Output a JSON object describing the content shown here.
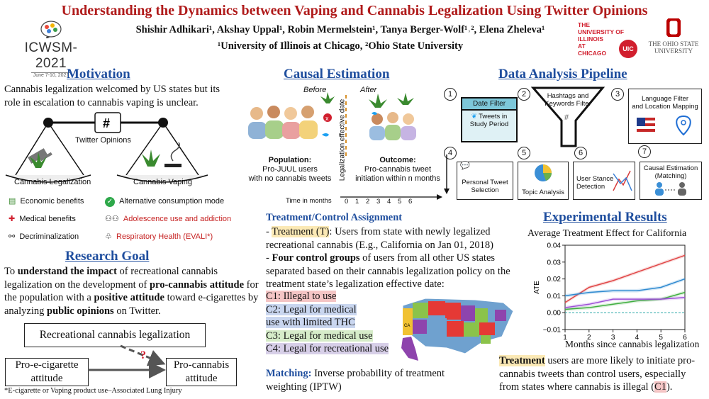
{
  "header": {
    "title": "Understanding the Dynamics between Vaping and Cannabis Legalization Using Twitter Opinions",
    "authors": "Shishir Adhikari¹, Akshay Uppal¹, Robin Mermelstein¹, Tanya Berger-Wolf¹˒², Elena Zheleva¹",
    "affiliations": "¹University of Illinois at Chicago, ²Ohio State University",
    "conf_logo": "ICWSM-2021",
    "conf_dates": "June 7-10, 2021",
    "uic_lines": [
      "THE",
      "UNIVERSITY OF",
      "ILLINOIS",
      "AT",
      "CHICAGO"
    ],
    "uic_badge": "UIC",
    "osu_lines": [
      "THE OHIO STATE",
      "UNIVERSITY"
    ]
  },
  "motivation": {
    "heading": "Motivation",
    "text": "Cannabis legalization welcomed by US states but its role in escalation to cannabis vaping is unclear.",
    "scale_center": "Twitter Opinions",
    "left_pan": "Cannabis Legalization",
    "right_pan": "Cannabis Vaping",
    "left_items": [
      "Economic benefits",
      "Medical benefits",
      "Decriminalization"
    ],
    "right_items": [
      "Alternative consumption mode",
      "Adolescence use and addiction",
      "Respiratory Health (EVALI*)"
    ]
  },
  "research_goal": {
    "heading": "Research Goal",
    "p1": "To ",
    "b1": "understand the impact",
    "p2": " of recreational cannabis legalization on the development of ",
    "b2": "pro-cannabis attitude",
    "p3": " for the population with a ",
    "b3": "positive attitude",
    "p4": " toward e-cigarettes by analyzing ",
    "b4": "public opinions",
    "p5": " on Twitter.",
    "dag_top": "Recreational cannabis legalization",
    "dag_left": "Pro-e-cigarette attitude",
    "dag_right": "Pro-cannabis attitude",
    "dag_question": "?",
    "footnote": "*E-cigarette or Vaping product use–Associated Lung Injury"
  },
  "causal": {
    "heading": "Causal Estimation",
    "before": "Before",
    "after": "After",
    "divider": "Legalization effective date",
    "population_title": "Population:",
    "population_text": [
      "Pro-JUUL users",
      "with no cannabis tweets"
    ],
    "outcome_title": "Outcome:",
    "outcome_text": [
      "Pro-cannabis tweet",
      "initiation within n months"
    ],
    "time_label": "Time in months",
    "time_ticks": [
      "0",
      "1",
      "2",
      "3",
      "4",
      "5",
      "6"
    ]
  },
  "assignment": {
    "heading": "Treatment/Control Assignment",
    "treat_prefix": "- ",
    "treat_label": "Treatment (T)",
    "treat_text": ": Users from state with newly legalized recreational cannabis (E.g., California on Jan 01, 2018)",
    "control_prefix": "- ",
    "control_bold": "Four control groups",
    "control_text": " of users from all other US states separated based on their cannabis legalization policy on the treatment state’s legalization effective date:",
    "groups": [
      "C1: Illegal to use",
      "C2: Legal for medical",
      "use with limited THC",
      "C3: Legal for medical use",
      "C4: Legal for recreational use"
    ],
    "matching_label": "Matching:",
    "matching_text": " Inverse probability of treatment weighting (IPTW)",
    "map_label": "CA"
  },
  "pipeline": {
    "heading": "Data Analysis Pipeline",
    "steps": [
      "1",
      "2",
      "3",
      "4",
      "5",
      "6",
      "7"
    ],
    "date_filter": "Date Filter",
    "tweets_period": [
      "Tweets in",
      "Study Period"
    ],
    "hashtags": [
      "Hashtags and",
      "Keywords Filter"
    ],
    "hash_symbol": "#",
    "language": [
      "Language Filter",
      "and Location Mapping"
    ],
    "personal": [
      "Personal Tweet",
      "Selection"
    ],
    "topic": "Topic Analysis",
    "stance": [
      "User Stance",
      "Detection"
    ],
    "causal": [
      "Causal Estimation",
      "(Matching)"
    ]
  },
  "results": {
    "heading": "Experimental Results",
    "chart_title": "Average Treatment Effect for California",
    "conclusion_bold": "Treatment",
    "conclusion_1": " users are more likely to initiate pro-cannabis tweets than control users, especially from states where cannabis is illegal (",
    "conclusion_c1": "C1",
    "conclusion_2": ")."
  },
  "chart_data": {
    "type": "line",
    "title": "Average Treatment Effect for California",
    "xlabel": "Months since cannabis legalization",
    "ylabel": "ATE",
    "x": [
      1,
      2,
      3,
      4,
      5,
      6
    ],
    "xticks": [
      "1",
      "2",
      "3",
      "4",
      "5",
      "6"
    ],
    "yticks": [
      "0.04",
      "0.03",
      "0.02",
      "0.01",
      "0.00",
      "−0.01"
    ],
    "ylim": [
      -0.01,
      0.04
    ],
    "series": [
      {
        "color": "#e04646",
        "values": [
          0.006,
          0.015,
          0.019,
          0.024,
          0.029,
          0.034
        ]
      },
      {
        "color": "#2f8ad0",
        "values": [
          0.01,
          0.012,
          0.013,
          0.013,
          0.015,
          0.02
        ]
      },
      {
        "color": "#3fae3f",
        "values": [
          0.002,
          0.003,
          0.005,
          0.007,
          0.008,
          0.012
        ]
      },
      {
        "color": "#9c4fd6",
        "values": [
          0.003,
          0.005,
          0.008,
          0.008,
          0.008,
          0.009
        ]
      }
    ],
    "reference_line": 0.0,
    "grid": false
  }
}
